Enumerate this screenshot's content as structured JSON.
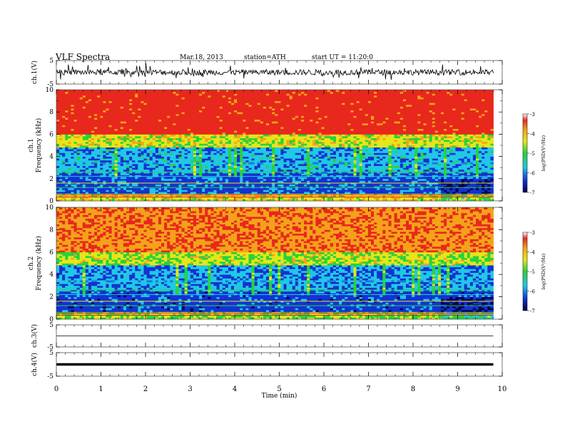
{
  "header": {
    "title": "VLF  Spectra",
    "date": "Mar.18, 2013",
    "station": "station=ATH",
    "start": "start  UT  =   11:20:0"
  },
  "colorbar": {
    "label": "log(PSD(V²/Hz)",
    "ticks": [
      "-3",
      "-4",
      "-5",
      "-6",
      "-7"
    ]
  },
  "x_axis": {
    "label": "Time  (min)",
    "ticks": [
      "0",
      "1",
      "2",
      "3",
      "4",
      "5",
      "6",
      "7",
      "8",
      "9",
      "10"
    ]
  },
  "colors": {
    "high": "#e8281c",
    "orange": "#f4a21a",
    "yellow": "#e6e619",
    "green": "#28d23c",
    "cyan": "#20c8e6",
    "blue": "#1432d2",
    "navy": "#000050"
  },
  "chart_data": [
    {
      "type": "line",
      "panel": "ch1-waveform",
      "ylabel": "ch.1(V)",
      "ylim": [
        -5,
        5
      ],
      "y_ticks": [
        "5",
        "-5"
      ],
      "x": [
        0,
        1,
        2,
        3,
        4,
        5,
        6,
        7,
        8,
        9,
        9.8
      ],
      "y": [
        0,
        0,
        0,
        0,
        0,
        0,
        0,
        0,
        0,
        0,
        0
      ],
      "xlim": [
        0,
        10
      ]
    },
    {
      "type": "heatmap",
      "panel": "ch1-spectrogram",
      "ylabel": "ch.1\nFrequency  (kHz)",
      "ylim": [
        0,
        10
      ],
      "y_ticks": [
        "10",
        "8",
        "6",
        "4",
        "2",
        "0"
      ],
      "xlim": [
        0,
        10
      ],
      "time_extent": [
        0,
        9.8
      ],
      "frequency_bands_khz": [
        {
          "range": [
            6,
            10
          ],
          "log_psd": -3.3
        },
        {
          "range": [
            4.8,
            6
          ],
          "log_psd": -4.6
        },
        {
          "range": [
            2.5,
            4.8
          ],
          "log_psd": -5.7
        },
        {
          "range": [
            0.6,
            2.5
          ],
          "log_psd": -6.1
        },
        {
          "range": [
            0,
            0.6
          ],
          "log_psd": -4.5
        }
      ],
      "colorscale_range": [
        -7,
        -3
      ]
    },
    {
      "type": "heatmap",
      "panel": "ch2-spectrogram",
      "ylabel": "ch.2\nFrequency  (kHz)",
      "ylim": [
        0,
        10
      ],
      "y_ticks": [
        "10",
        "8",
        "6",
        "4",
        "2",
        "0"
      ],
      "xlim": [
        0,
        10
      ],
      "time_extent": [
        0,
        9.8
      ],
      "frequency_bands_khz": [
        {
          "range": [
            6,
            10
          ],
          "log_psd": -3.8
        },
        {
          "range": [
            4.8,
            6
          ],
          "log_psd": -4.7
        },
        {
          "range": [
            2.5,
            4.8
          ],
          "log_psd": -5.8
        },
        {
          "range": [
            0.6,
            2.5
          ],
          "log_psd": -6.2
        },
        {
          "range": [
            0,
            0.6
          ],
          "log_psd": -4.8
        }
      ],
      "colorscale_range": [
        -7,
        -3
      ]
    },
    {
      "type": "line",
      "panel": "ch3-waveform",
      "ylabel": "ch.3(V)",
      "ylim": [
        -5,
        5
      ],
      "y_ticks": [
        "5",
        "-5"
      ],
      "x": [
        0,
        9.8
      ],
      "y": [
        0,
        0
      ],
      "xlim": [
        0,
        10
      ]
    },
    {
      "type": "line",
      "panel": "ch4-waveform",
      "ylabel": "ch.4(V)",
      "ylim": [
        -5,
        5
      ],
      "y_ticks": [
        "5",
        "-5"
      ],
      "x": [
        0,
        9.8
      ],
      "y": [
        0,
        0
      ],
      "xlim": [
        0,
        10
      ]
    }
  ]
}
